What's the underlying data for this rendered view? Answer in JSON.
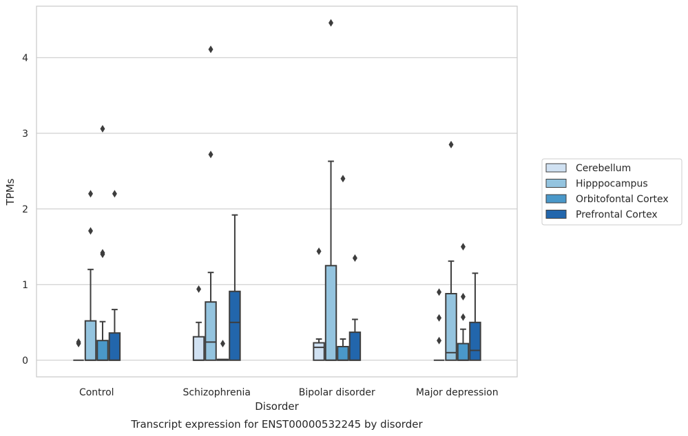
{
  "chart_data": {
    "type": "box",
    "title": "",
    "caption": "Transcript expression for ENST00000532245 by disorder",
    "xlabel": "Disorder",
    "ylabel": "TPMs",
    "ylim": [
      -0.22,
      4.68
    ],
    "yticks": [
      0,
      1,
      2,
      3,
      4
    ],
    "grid": "horizontal",
    "legend_position": "right",
    "categories": [
      "Control",
      "Schizophrenia",
      "Bipolar disorder",
      "Major depression"
    ],
    "series": [
      {
        "name": "Cerebellum",
        "color": "#d0e1f2",
        "boxes": [
          {
            "q1": 0,
            "median": 0,
            "q3": 0,
            "whislo": 0,
            "whishi": 0,
            "fliers": [
              0.22,
              0.24
            ]
          },
          {
            "q1": 0,
            "median": 0,
            "q3": 0.31,
            "whislo": 0,
            "whishi": 0.5,
            "fliers": [
              0.94
            ]
          },
          {
            "q1": 0,
            "median": 0.17,
            "q3": 0.23,
            "whislo": 0,
            "whishi": 0.28,
            "fliers": [
              1.44
            ]
          },
          {
            "q1": 0,
            "median": 0,
            "q3": 0,
            "whislo": 0,
            "whishi": 0,
            "fliers": [
              0.26,
              0.56,
              0.9
            ]
          }
        ]
      },
      {
        "name": "Hipppocampus",
        "color": "#94c4df",
        "boxes": [
          {
            "q1": 0,
            "median": 0,
            "q3": 0.52,
            "whislo": 0,
            "whishi": 1.2,
            "fliers": [
              1.71,
              2.2
            ]
          },
          {
            "q1": 0,
            "median": 0.24,
            "q3": 0.77,
            "whislo": 0,
            "whishi": 1.16,
            "fliers": [
              2.72,
              4.11
            ]
          },
          {
            "q1": 0,
            "median": 0,
            "q3": 1.25,
            "whislo": 0,
            "whishi": 2.63,
            "fliers": [
              4.46
            ]
          },
          {
            "q1": 0,
            "median": 0.1,
            "q3": 0.88,
            "whislo": 0,
            "whishi": 1.31,
            "fliers": [
              2.85
            ]
          }
        ]
      },
      {
        "name": "Orbitofontal Cortex",
        "color": "#4a98c9",
        "boxes": [
          {
            "q1": 0,
            "median": 0,
            "q3": 0.26,
            "whislo": 0,
            "whishi": 0.51,
            "fliers": [
              1.4,
              1.42,
              3.06
            ]
          },
          {
            "q1": 0,
            "median": 0.01,
            "q3": 0.01,
            "whislo": 0,
            "whishi": 0.01,
            "fliers": [
              0.22
            ]
          },
          {
            "q1": 0,
            "median": 0,
            "q3": 0.18,
            "whislo": 0,
            "whishi": 0.28,
            "fliers": [
              2.4
            ]
          },
          {
            "q1": 0,
            "median": 0,
            "q3": 0.22,
            "whislo": 0,
            "whishi": 0.41,
            "fliers": [
              0.57,
              0.84,
              1.5
            ]
          }
        ]
      },
      {
        "name": "Prefrontal Cortex",
        "color": "#2266ac",
        "boxes": [
          {
            "q1": 0,
            "median": 0,
            "q3": 0.36,
            "whislo": 0,
            "whishi": 0.67,
            "fliers": [
              2.2
            ]
          },
          {
            "q1": 0,
            "median": 0.5,
            "q3": 0.91,
            "whislo": 0,
            "whishi": 1.92,
            "fliers": []
          },
          {
            "q1": 0,
            "median": 0,
            "q3": 0.37,
            "whislo": 0,
            "whishi": 0.54,
            "fliers": [
              1.35
            ]
          },
          {
            "q1": 0,
            "median": 0.13,
            "q3": 0.5,
            "whislo": 0,
            "whishi": 1.15,
            "fliers": []
          }
        ]
      }
    ]
  }
}
